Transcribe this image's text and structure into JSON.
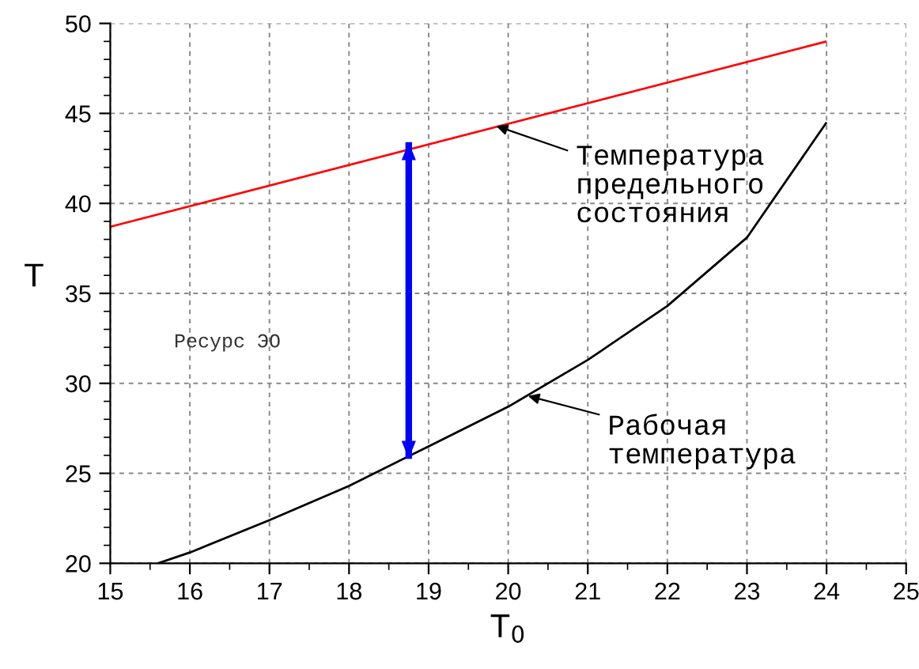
{
  "chart_data": {
    "type": "line",
    "xlabel": "T$_{0}$",
    "ylabel": "T",
    "series": [
      {
        "color": "#ff0000",
        "x": [
          15,
          24
        ],
        "values": [
          38.7,
          49
        ]
      },
      {
        "color": "#000000",
        "x": [
          15.6,
          16,
          17,
          18,
          19,
          20,
          21,
          22,
          23,
          24
        ],
        "values": [
          20,
          20.6,
          22.4,
          24.3,
          26.5,
          28.7,
          31.3,
          34.3,
          38.1,
          44.5
        ]
      },
      {
        "color": "#0000ff",
        "x": [
          18.75,
          18.75
        ],
        "values": [
          25.8,
          43.4
        ]
      }
    ],
    "annotations": [
      {
        "text": "Температура\nпредельного\nсостояния",
        "x": 19.85,
        "y": 44.3
      },
      {
        "text": "Рабочая\nтемпература",
        "x": 20.25,
        "y": 29.3
      },
      "Ресурс ЭО"
    ],
    "xlim": [
      15,
      25
    ],
    "xticks": [
      15,
      16,
      17,
      18,
      19,
      20,
      21,
      22,
      23,
      24,
      25
    ],
    "ylim": [
      20,
      50
    ],
    "yticks": [
      20,
      25,
      30,
      35,
      40,
      45,
      50
    ],
    "grid": true,
    "marker": "none",
    "line_style": "solid"
  }
}
